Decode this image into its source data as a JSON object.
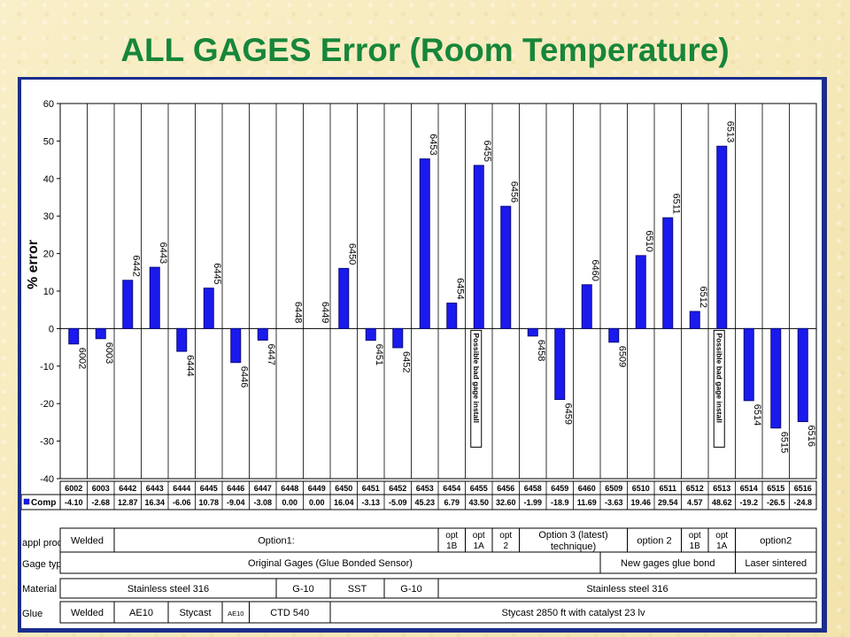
{
  "page": {
    "title": "ALL GAGES Error (Room Temperature)"
  },
  "chart_data": {
    "type": "bar",
    "ylabel": "% error",
    "ylim": [
      -40,
      60
    ],
    "yticks": [
      -40,
      -30,
      -20,
      -10,
      0,
      10,
      20,
      30,
      40,
      50,
      60
    ],
    "grid": "vertical category lines",
    "categories": [
      "6002",
      "6003",
      "6442",
      "6443",
      "6444",
      "6445",
      "6446",
      "6447",
      "6448",
      "6449",
      "6450",
      "6451",
      "6452",
      "6453",
      "6454",
      "6455",
      "6456",
      "6458",
      "6459",
      "6460",
      "6509",
      "6510",
      "6511",
      "6512",
      "6513",
      "6514",
      "6515",
      "6516"
    ],
    "series": [
      {
        "name": "Comp",
        "values": [
          -4.1,
          -2.68,
          12.87,
          16.34,
          -6.06,
          10.78,
          -9.04,
          -3.08,
          0.0,
          0.0,
          16.04,
          -3.13,
          -5.09,
          45.23,
          6.79,
          43.5,
          32.6,
          -1.99,
          -18.9,
          11.69,
          -3.63,
          19.46,
          29.54,
          4.57,
          48.62,
          -19.2,
          -26.5,
          -24.8
        ],
        "value_labels": [
          "-4.10",
          "-2.68",
          "12.87",
          "16.34",
          "-6.06",
          "10.78",
          "-9.04",
          "-3.08",
          "0.00",
          "0.00",
          "16.04",
          "-3.13",
          "-5.09",
          "45.23",
          "6.79",
          "43.50",
          "32.60",
          "-1.99",
          "-18.9",
          "11.69",
          "-3.63",
          "19.46",
          "29.54",
          "4.57",
          "48.62",
          "-19.2",
          "-26.5",
          "-24.8"
        ]
      }
    ],
    "annotations": [
      {
        "category": "6455",
        "text": "Possible bad gage install"
      },
      {
        "category": "6513",
        "text": "Possible bad gage install"
      }
    ],
    "colors": {
      "bar": "#1a1aee",
      "bar_edge": "#0b0b7a",
      "title": "#17863a",
      "frame": "#1c2d8c"
    }
  },
  "table": {
    "rows": [
      {
        "label": "appl proc.",
        "cells": [
          {
            "span": 2,
            "text": "Welded"
          },
          {
            "span": 12,
            "text": "Option1:"
          },
          {
            "span": 1,
            "text": "opt 1B"
          },
          {
            "span": 1,
            "text": "opt 1A"
          },
          {
            "span": 1,
            "text": "opt 2"
          },
          {
            "span": 4,
            "text": "Option 3 (latest) technique)"
          },
          {
            "span": 2,
            "text": "option 2"
          },
          {
            "span": 1,
            "text": "opt 1B"
          },
          {
            "span": 1,
            "text": "opt 1A"
          },
          {
            "span": 3,
            "text": "option2"
          }
        ]
      },
      {
        "label": "Gage type",
        "cells": [
          {
            "span": 20,
            "text": "Original Gages (Glue Bonded Sensor)"
          },
          {
            "span": 5,
            "text": "New gages glue bond"
          },
          {
            "span": 3,
            "text": "Laser sintered"
          }
        ]
      },
      {
        "label": "Material",
        "cells": [
          {
            "span": 8,
            "text": "Stainless steel 316"
          },
          {
            "span": 2,
            "text": "G-10"
          },
          {
            "span": 2,
            "text": "SST"
          },
          {
            "span": 2,
            "text": "G-10"
          },
          {
            "span": 14,
            "text": "Stainless steel 316"
          }
        ]
      },
      {
        "label": "Glue",
        "cells": [
          {
            "span": 2,
            "text": "Welded"
          },
          {
            "span": 2,
            "text": "AE10"
          },
          {
            "span": 2,
            "text": "Stycast"
          },
          {
            "span": 1,
            "text": "AE10"
          },
          {
            "span": 3,
            "text": "CTD 540"
          },
          {
            "span": 18,
            "text": "Stycast 2850 ft with catalyst 23 lv"
          }
        ]
      }
    ]
  }
}
